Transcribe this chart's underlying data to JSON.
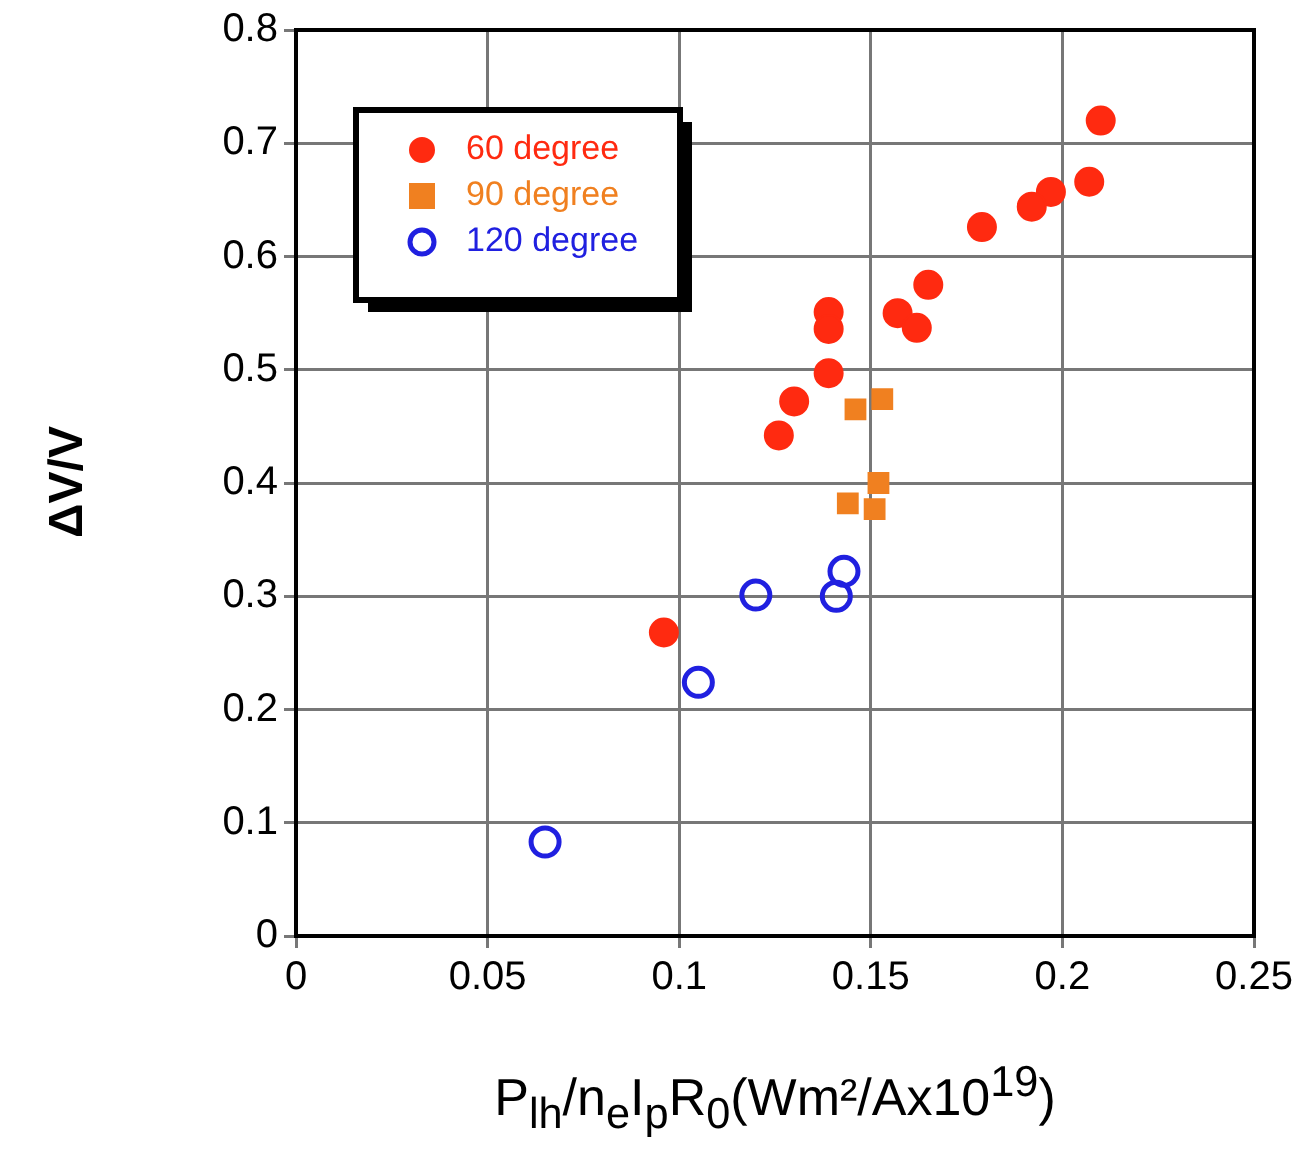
{
  "chart_data": {
    "type": "scatter",
    "xlabel": "P$_{lh}$/n$_{e}$I$_{p}$R$_{0}$(Wm²/Ax10$^{19}$)",
    "ylabel": "ΔV/V",
    "xlim": [
      0,
      0.25
    ],
    "xticks": [
      0,
      0.05,
      0.1,
      0.15,
      0.2,
      0.25
    ],
    "ylim": [
      0,
      0.8
    ],
    "yticks": [
      0,
      0.1,
      0.2,
      0.3,
      0.4,
      0.5,
      0.6,
      0.7,
      0.8
    ],
    "grid": true,
    "legend": "top left",
    "series": [
      {
        "name": "60 degree",
        "color": "#ff2a10",
        "marker": "circle",
        "x": [
          0.21,
          0.207,
          0.197,
          0.192,
          0.179,
          0.165,
          0.157,
          0.162,
          0.139,
          0.139,
          0.139,
          0.13,
          0.126,
          0.096
        ],
        "values": [
          0.72,
          0.666,
          0.657,
          0.644,
          0.626,
          0.575,
          0.55,
          0.537,
          0.551,
          0.536,
          0.497,
          0.472,
          0.442,
          0.268
        ]
      },
      {
        "name": "90 degree",
        "color": "#f08020",
        "marker": "square",
        "x": [
          0.146,
          0.153,
          0.152,
          0.144,
          0.151
        ],
        "values": [
          0.465,
          0.474,
          0.4,
          0.382,
          0.377
        ]
      },
      {
        "name": "120 degree",
        "color": "#2020e0",
        "marker": "circle_open",
        "x": [
          0.143,
          0.141,
          0.12,
          0.105,
          0.065
        ],
        "values": [
          0.322,
          0.3,
          0.301,
          0.224,
          0.083
        ]
      }
    ]
  }
}
